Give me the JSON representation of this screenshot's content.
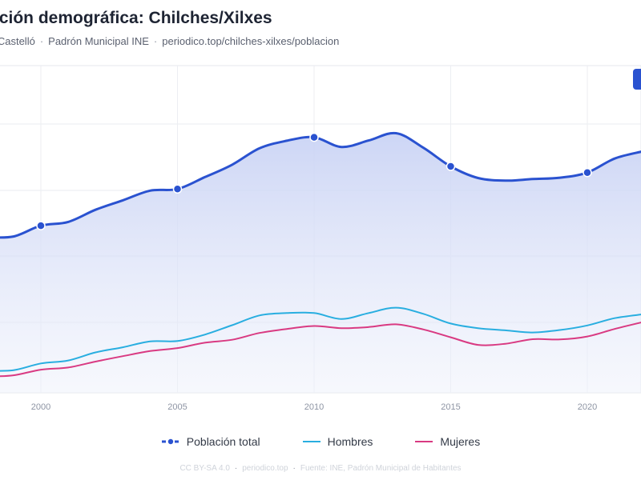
{
  "header": {
    "title": "ución demográfica: Chilches/Xilxes",
    "subtitle_parts": [
      "n/Castelló",
      "Padrón Municipal INE",
      "periodico.top/chilches-xilxes/poblacion"
    ]
  },
  "footer": {
    "parts": [
      "CC BY-SA 4.0",
      "periodico.top",
      "Fuente: INE, Padrón Municipal de Habitantes"
    ]
  },
  "chart_data": {
    "type": "line",
    "title": "ución demográfica: Chilches/Xilxes",
    "x_ticks": [
      "2000",
      "2005",
      "2010",
      "2015",
      "2020"
    ],
    "xlim": [
      1998.5,
      2022
    ],
    "ylim": [
      0,
      1
    ],
    "grid": true,
    "legend": "bottom-center",
    "series": [
      {
        "name": "Población total",
        "color": "#2a52d0",
        "area": true,
        "markers": true,
        "marker_x": [
          2000,
          2005,
          2010,
          2015,
          2020
        ],
        "x": [
          1998,
          1999,
          2000,
          2001,
          2002,
          2003,
          2004,
          2005,
          2006,
          2007,
          2008,
          2009,
          2010,
          2011,
          2012,
          2013,
          2014,
          2015,
          2016,
          2017,
          2018,
          2019,
          2020,
          2021,
          2022
        ],
        "values": [
          0.565,
          0.568,
          0.608,
          0.622,
          0.667,
          0.702,
          0.738,
          0.744,
          0.788,
          0.834,
          0.895,
          0.923,
          0.936,
          0.9,
          0.924,
          0.951,
          0.897,
          0.828,
          0.785,
          0.775,
          0.781,
          0.786,
          0.805,
          0.857,
          0.883
        ]
      },
      {
        "name": "Hombres",
        "color": "#29aee0",
        "area": false,
        "markers": false,
        "x": [
          1998,
          1999,
          2000,
          2001,
          2002,
          2003,
          2004,
          2005,
          2006,
          2007,
          2008,
          2009,
          2010,
          2011,
          2012,
          2013,
          2014,
          2015,
          2016,
          2017,
          2018,
          2019,
          2020,
          2021,
          2022
        ],
        "values": [
          0.07,
          0.072,
          0.097,
          0.108,
          0.138,
          0.157,
          0.179,
          0.18,
          0.204,
          0.239,
          0.275,
          0.284,
          0.284,
          0.262,
          0.284,
          0.304,
          0.281,
          0.245,
          0.228,
          0.22,
          0.212,
          0.221,
          0.238,
          0.265,
          0.279
        ]
      },
      {
        "name": "Mujeres",
        "color": "#d93a82",
        "area": false,
        "markers": false,
        "x": [
          1998,
          1999,
          2000,
          2001,
          2002,
          2003,
          2004,
          2005,
          2006,
          2007,
          2008,
          2009,
          2010,
          2011,
          2012,
          2013,
          2014,
          2015,
          2016,
          2017,
          2018,
          2019,
          2020,
          2021,
          2022
        ],
        "values": [
          0.048,
          0.053,
          0.074,
          0.082,
          0.104,
          0.124,
          0.143,
          0.154,
          0.174,
          0.185,
          0.21,
          0.225,
          0.236,
          0.228,
          0.232,
          0.242,
          0.223,
          0.194,
          0.166,
          0.17,
          0.187,
          0.186,
          0.197,
          0.225,
          0.25
        ]
      }
    ]
  }
}
